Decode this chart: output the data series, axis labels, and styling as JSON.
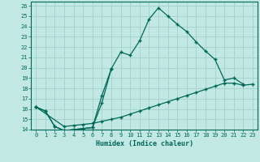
{
  "title": "",
  "xlabel": "Humidex (Indice chaleur)",
  "background_color": "#c2e8e4",
  "grid_color": "#a8d4d0",
  "line_color": "#006858",
  "xlim": [
    -0.5,
    23.5
  ],
  "ylim": [
    14,
    26.4
  ],
  "xticks": [
    0,
    1,
    2,
    3,
    4,
    5,
    6,
    7,
    8,
    9,
    10,
    11,
    12,
    13,
    14,
    15,
    16,
    17,
    18,
    19,
    20,
    21,
    22,
    23
  ],
  "yticks": [
    14,
    15,
    16,
    17,
    18,
    19,
    20,
    21,
    22,
    23,
    24,
    25,
    26
  ],
  "line1": {
    "x": [
      0,
      1,
      2,
      3,
      4,
      5,
      6,
      7,
      8,
      9,
      10,
      11,
      12,
      13,
      14,
      15,
      16,
      17,
      18,
      19,
      20,
      21,
      22
    ],
    "y": [
      16.2,
      15.8,
      14.3,
      13.9,
      14.0,
      14.1,
      14.2,
      16.6,
      19.9,
      21.5,
      21.2,
      22.6,
      24.7,
      25.8,
      25.0,
      24.2,
      23.5,
      22.5,
      21.6,
      20.8,
      18.8,
      19.0,
      18.4
    ]
  },
  "line2": {
    "x": [
      0,
      1,
      2,
      3,
      4,
      5,
      6,
      7,
      8
    ],
    "y": [
      16.2,
      15.8,
      14.3,
      13.9,
      14.0,
      14.1,
      14.2,
      17.3,
      19.9
    ]
  },
  "line3": {
    "x": [
      0,
      3,
      4,
      5,
      6,
      7,
      8,
      9,
      10,
      11,
      12,
      13,
      14,
      15,
      16,
      17,
      18,
      19,
      20,
      21,
      22,
      23
    ],
    "y": [
      16.2,
      14.3,
      14.4,
      14.5,
      14.6,
      14.8,
      15.0,
      15.2,
      15.5,
      15.8,
      16.1,
      16.4,
      16.7,
      17.0,
      17.3,
      17.6,
      17.9,
      18.2,
      18.5,
      18.5,
      18.3,
      18.4
    ]
  }
}
